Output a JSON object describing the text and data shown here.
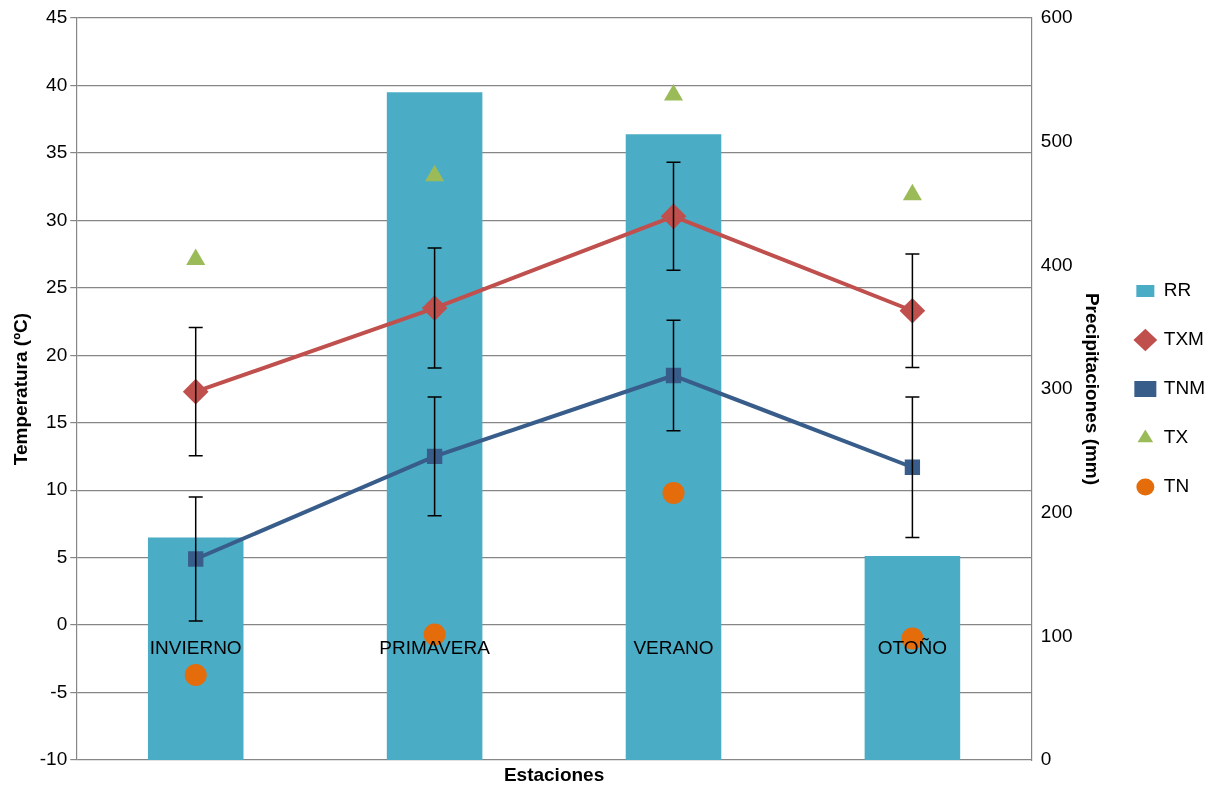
{
  "chart_data": {
    "type": "bar",
    "xlabel": "Estaciones",
    "ylabel": "Temperatura (ºC)",
    "y2label": "Precipitaciones (mm)",
    "categories": [
      "INVIERNO",
      "PRIMAVERA",
      "VERANO",
      "OTOÑO"
    ],
    "ylim": [
      -10,
      45
    ],
    "yticks": [
      -10,
      -5,
      0,
      5,
      10,
      15,
      20,
      25,
      30,
      35,
      40,
      45
    ],
    "y2lim": [
      0,
      600
    ],
    "y2ticks": [
      0,
      100,
      200,
      300,
      400,
      500,
      600
    ],
    "grid": "y",
    "legend": "right",
    "series": [
      {
        "name": "RR",
        "axis": "y2",
        "color": "#4bacc6",
        "values": [
          180,
          540,
          506,
          165
        ]
      },
      {
        "name": "TXM",
        "type": "line",
        "color": "#c0504d",
        "marker": "diamond",
        "line_style": "solid",
        "values": [
          17.3,
          23.5,
          30.3,
          23.3
        ],
        "errors": [
          4.75,
          4.45,
          4.0,
          4.2
        ]
      },
      {
        "name": "TNM",
        "type": "line",
        "color": "#385d8a",
        "marker": "square",
        "line_style": "solid",
        "values": [
          4.9,
          12.5,
          18.5,
          11.7
        ],
        "errors": [
          4.6,
          4.4,
          4.1,
          5.2
        ]
      },
      {
        "name": "TX",
        "type": "scatter",
        "color": "#9bbb59",
        "marker": "triangle",
        "values": [
          27.1,
          33.3,
          39.3,
          31.9
        ]
      },
      {
        "name": "TN",
        "type": "scatter",
        "color": "#e46c0a",
        "marker": "circle",
        "values": [
          -3.7,
          -0.7,
          9.8,
          -1.0
        ]
      }
    ]
  }
}
